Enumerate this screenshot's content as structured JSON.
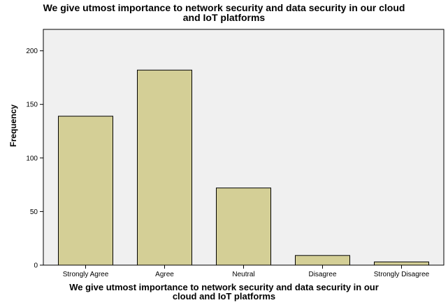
{
  "chart_data": {
    "type": "bar",
    "title": "We give utmost importance to network security and data security in our cloud and IoT platforms",
    "xlabel": "We give utmost importance to network security and data security in our cloud and IoT platforms",
    "ylabel": "Frequency",
    "categories": [
      "Strongly Agree",
      "Agree",
      "Neutral",
      "Disagree",
      "Strongly Disagree"
    ],
    "values": [
      139,
      182,
      72,
      9,
      3
    ],
    "ylim": [
      0,
      220
    ],
    "yticks": [
      0,
      50,
      100,
      150,
      200
    ],
    "colors": {
      "bar": "#d4cf96",
      "plot_bg": "#f0f0f0",
      "edge": "#000000"
    }
  }
}
